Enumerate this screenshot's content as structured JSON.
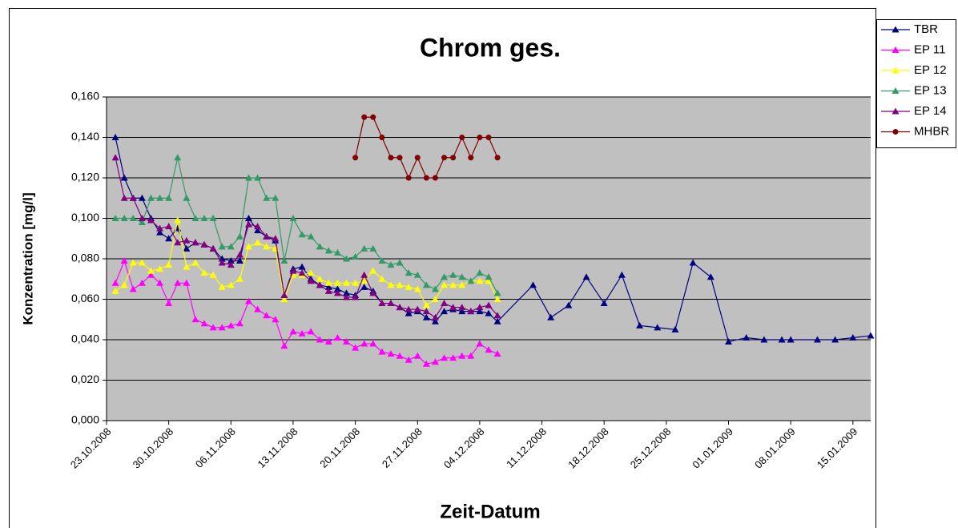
{
  "chart_data": {
    "type": "line",
    "title": "Chrom ges.",
    "x_label": "Zeit-Datum",
    "y_label": "Konzentration [mg/l]",
    "x": [
      "24.10.2008",
      "25.10.2008",
      "26.10.2008",
      "27.10.2008",
      "28.10.2008",
      "29.10.2008",
      "30.10.2008",
      "31.10.2008",
      "01.11.2008",
      "02.11.2008",
      "03.11.2008",
      "04.11.2008",
      "05.11.2008",
      "06.11.2008",
      "07.11.2008",
      "08.11.2008",
      "09.11.2008",
      "10.11.2008",
      "11.11.2008",
      "12.11.2008",
      "13.11.2008",
      "14.11.2008",
      "15.11.2008",
      "16.11.2008",
      "17.11.2008",
      "18.11.2008",
      "19.11.2008",
      "20.11.2008",
      "21.11.2008",
      "22.11.2008",
      "23.11.2008",
      "24.11.2008",
      "25.11.2008",
      "26.11.2008",
      "27.11.2008",
      "28.11.2008",
      "29.11.2008",
      "30.11.2008",
      "01.12.2008",
      "02.12.2008",
      "03.12.2008",
      "04.12.2008",
      "05.12.2008",
      "06.12.2008",
      "10.12.2008",
      "12.12.2008",
      "14.12.2008",
      "16.12.2008",
      "18.12.2008",
      "20.12.2008",
      "22.12.2008",
      "24.12.2008",
      "26.12.2008",
      "28.12.2008",
      "30.12.2008",
      "01.01.2009",
      "03.01.2009",
      "05.01.2009",
      "07.01.2009",
      "08.01.2009",
      "11.01.2009",
      "13.01.2009",
      "15.01.2009",
      "17.01.2009"
    ],
    "series": [
      {
        "name": "TBR",
        "color": "#000080",
        "marker": "triangle",
        "values": [
          0.14,
          0.12,
          0.11,
          0.11,
          0.1,
          0.093,
          0.09,
          0.095,
          0.085,
          0.088,
          0.087,
          0.085,
          0.08,
          0.079,
          0.079,
          0.1,
          0.094,
          0.091,
          0.089,
          0.062,
          0.075,
          0.076,
          0.07,
          0.067,
          0.066,
          0.065,
          0.063,
          0.062,
          0.066,
          0.064,
          0.058,
          0.058,
          0.056,
          0.053,
          0.054,
          0.051,
          0.049,
          0.054,
          0.055,
          0.054,
          0.054,
          0.054,
          0.053,
          0.049,
          0.067,
          0.051,
          0.057,
          0.071,
          0.058,
          0.072,
          0.047,
          0.046,
          0.045,
          0.078,
          0.071,
          0.039,
          0.041,
          0.04,
          0.04,
          0.04,
          0.04,
          0.04,
          0.041,
          0.042
        ]
      },
      {
        "name": "EP 11",
        "color": "#ff00ff",
        "marker": "triangle",
        "values": [
          0.068,
          0.079,
          0.065,
          0.068,
          0.072,
          0.068,
          0.058,
          0.068,
          0.068,
          0.05,
          0.048,
          0.046,
          0.046,
          0.047,
          0.048,
          0.059,
          0.055,
          0.052,
          0.05,
          0.037,
          0.044,
          0.043,
          0.044,
          0.04,
          0.039,
          0.041,
          0.039,
          0.036,
          0.038,
          0.038,
          0.034,
          0.033,
          0.032,
          0.03,
          0.032,
          0.028,
          0.029,
          0.031,
          0.031,
          0.032,
          0.032,
          0.038,
          0.035,
          0.033,
          null,
          null,
          null,
          null,
          null,
          null,
          null,
          null,
          null,
          null,
          null,
          null,
          null,
          null,
          null,
          null,
          null,
          null,
          null,
          null
        ]
      },
      {
        "name": "EP 12",
        "color": "#ffff00",
        "marker": "triangle",
        "values": [
          0.064,
          0.067,
          0.078,
          0.078,
          0.074,
          0.075,
          0.077,
          0.099,
          0.076,
          0.078,
          0.073,
          0.072,
          0.066,
          0.067,
          0.07,
          0.086,
          0.088,
          0.086,
          0.085,
          0.06,
          0.072,
          0.072,
          0.073,
          0.07,
          0.068,
          0.068,
          0.068,
          0.068,
          0.069,
          0.074,
          0.07,
          0.067,
          0.067,
          0.066,
          0.065,
          0.057,
          0.06,
          0.067,
          0.067,
          0.067,
          0.069,
          0.069,
          0.069,
          0.06,
          null,
          null,
          null,
          null,
          null,
          null,
          null,
          null,
          null,
          null,
          null,
          null,
          null,
          null,
          null,
          null,
          null,
          null,
          null,
          null
        ]
      },
      {
        "name": "EP 13",
        "color": "#339966",
        "marker": "triangle",
        "values": [
          0.1,
          0.1,
          0.1,
          0.098,
          0.11,
          0.11,
          0.11,
          0.13,
          0.11,
          0.1,
          0.1,
          0.1,
          0.086,
          0.086,
          0.091,
          0.12,
          0.12,
          0.11,
          0.11,
          0.079,
          0.1,
          0.092,
          0.091,
          0.086,
          0.084,
          0.083,
          0.08,
          0.081,
          0.085,
          0.085,
          0.079,
          0.077,
          0.078,
          0.073,
          0.072,
          0.067,
          0.065,
          0.071,
          0.072,
          0.071,
          0.069,
          0.073,
          0.071,
          0.063,
          null,
          null,
          null,
          null,
          null,
          null,
          null,
          null,
          null,
          null,
          null,
          null,
          null,
          null,
          null,
          null,
          null,
          null,
          null,
          null
        ]
      },
      {
        "name": "EP 14",
        "color": "#800080",
        "marker": "triangle",
        "values": [
          0.13,
          0.11,
          0.11,
          0.1,
          0.099,
          0.095,
          0.096,
          0.088,
          0.089,
          0.088,
          0.087,
          0.085,
          0.078,
          0.077,
          0.082,
          0.097,
          0.096,
          0.091,
          0.09,
          0.062,
          0.074,
          0.073,
          0.069,
          0.067,
          0.064,
          0.063,
          0.061,
          0.061,
          0.072,
          0.063,
          0.058,
          0.058,
          0.056,
          0.055,
          0.055,
          0.054,
          0.051,
          0.058,
          0.056,
          0.056,
          0.054,
          0.056,
          0.057,
          0.052,
          null,
          null,
          null,
          null,
          null,
          null,
          null,
          null,
          null,
          null,
          null,
          null,
          null,
          null,
          null,
          null,
          null,
          null,
          null,
          null
        ]
      },
      {
        "name": "MHBR",
        "color": "#800000",
        "marker": "circle",
        "values": [
          null,
          null,
          null,
          null,
          null,
          null,
          null,
          null,
          null,
          null,
          null,
          null,
          null,
          null,
          null,
          null,
          null,
          null,
          null,
          null,
          null,
          null,
          null,
          null,
          null,
          null,
          null,
          0.13,
          0.15,
          0.15,
          0.14,
          0.13,
          0.13,
          0.12,
          0.13,
          0.12,
          0.12,
          0.13,
          0.13,
          0.14,
          0.13,
          0.14,
          0.14,
          0.13,
          null,
          null,
          null,
          null,
          null,
          null,
          null,
          null,
          null,
          null,
          null,
          null,
          null,
          null,
          null,
          null,
          null,
          null,
          null,
          null
        ]
      }
    ],
    "xlim": [
      "23.10.2008",
      "17.01.2009"
    ],
    "xticks": [
      "23.10.2008",
      "30.10.2008",
      "06.11.2008",
      "13.11.2008",
      "20.11.2008",
      "27.11.2008",
      "04.12.2008",
      "11.12.2008",
      "18.12.2008",
      "25.12.2008",
      "01.01.2009",
      "08.01.2009",
      "15.01.2009"
    ],
    "ylim": [
      0,
      0.16
    ],
    "yticks": [
      {
        "value": 0,
        "label": "0,000"
      },
      {
        "value": 0.02,
        "label": "0,020"
      },
      {
        "value": 0.04,
        "label": "0,040"
      },
      {
        "value": 0.06,
        "label": "0,060"
      },
      {
        "value": 0.08,
        "label": "0,080"
      },
      {
        "value": 0.1,
        "label": "0,100"
      },
      {
        "value": 0.12,
        "label": "0,120"
      },
      {
        "value": 0.14,
        "label": "0,140"
      },
      {
        "value": 0.16,
        "label": "0,160"
      }
    ],
    "grid": true,
    "legend": "top-right",
    "plot_background": "#c0c0c0"
  }
}
